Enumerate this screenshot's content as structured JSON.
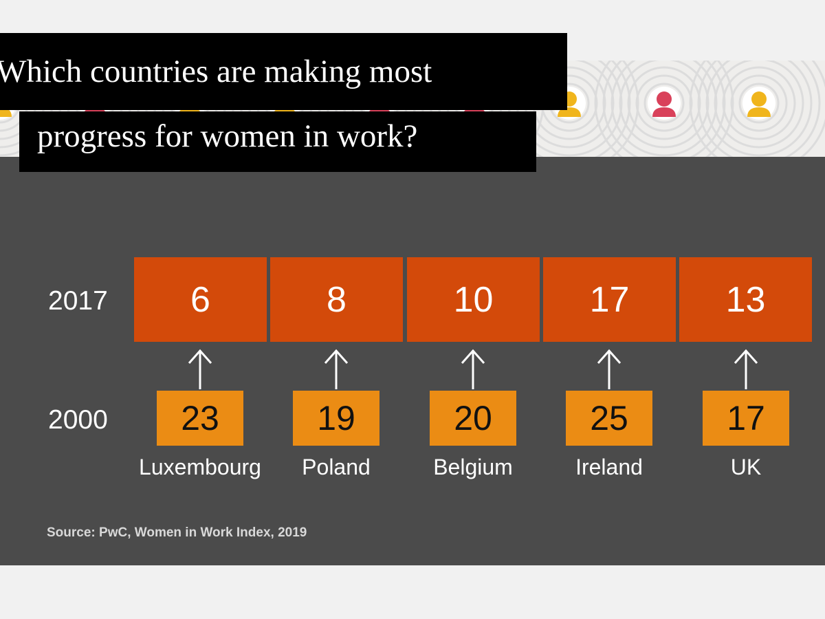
{
  "chart_data": {
    "type": "table",
    "title": "Which countries are making most progress for women in work?",
    "title_lines": [
      "Which countries are making most",
      "progress for women in work?"
    ],
    "row_labels": [
      "2017",
      "2000"
    ],
    "categories": [
      "Luxembourg",
      "Poland",
      "Belgium",
      "Ireland",
      "UK"
    ],
    "series": [
      {
        "name": "2017",
        "values": [
          6,
          8,
          10,
          17,
          13
        ]
      },
      {
        "name": "2000",
        "values": [
          23,
          19,
          20,
          25,
          17
        ]
      }
    ],
    "source": "Source: PwC, Women in Work Index, 2019"
  },
  "colors": {
    "panel_bg": "#4b4b4b",
    "cell_2017": "#d34a0a",
    "cell_2000": "#eb8c14",
    "title_bg": "#000000",
    "icon_red": "#d9415a",
    "icon_yellow": "#f0b51c",
    "ring": "#dcdcdc"
  },
  "banner": {
    "icon_colors": [
      "yellow",
      "red",
      "yellow",
      "yellow",
      "red",
      "red",
      "yellow",
      "red",
      "yellow"
    ]
  }
}
